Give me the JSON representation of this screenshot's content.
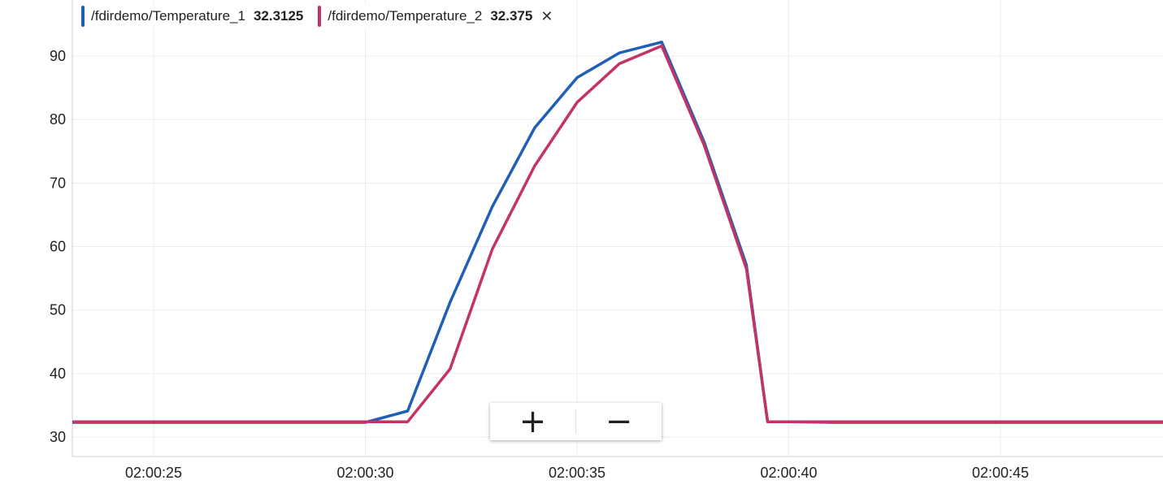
{
  "legend": [
    {
      "name": "/fdirdemo/Temperature_1",
      "value": "32.3125",
      "color": "#1f5fb5"
    },
    {
      "name": "/fdirdemo/Temperature_2",
      "value": "32.375",
      "color": "#c33366",
      "close_icon": "close-icon",
      "close_label": "✕"
    }
  ],
  "zoom": {
    "in_label": "+",
    "in_icon": "plus-icon",
    "out_label": "−",
    "out_icon": "minus-icon"
  },
  "chart_data": {
    "type": "line",
    "title": "",
    "xlabel": "",
    "ylabel": "",
    "xlim": [
      "02:00:23",
      "02:00:49"
    ],
    "ylim": [
      27,
      96
    ],
    "yticks": [
      30,
      40,
      50,
      60,
      70,
      80,
      90
    ],
    "xticks": [
      "02:00:25",
      "02:00:30",
      "02:00:35",
      "02:00:40",
      "02:00:45"
    ],
    "grid": true,
    "legend_position": "top-left",
    "series": [
      {
        "name": "/fdirdemo/Temperature_1",
        "color": "#1f5fb5",
        "points": [
          [
            "02:00:23",
            32.3
          ],
          [
            "02:00:24",
            32.3
          ],
          [
            "02:00:25",
            32.3
          ],
          [
            "02:00:26",
            32.3
          ],
          [
            "02:00:27",
            32.3
          ],
          [
            "02:00:28",
            32.3
          ],
          [
            "02:00:29",
            32.3
          ],
          [
            "02:00:30",
            32.3
          ],
          [
            "02:00:31",
            34.1
          ],
          [
            "02:00:32",
            51.2
          ],
          [
            "02:00:33",
            66.3
          ],
          [
            "02:00:34",
            78.7
          ],
          [
            "02:00:35",
            86.6
          ],
          [
            "02:00:36",
            90.5
          ],
          [
            "02:00:37",
            92.2
          ],
          [
            "02:00:38",
            76.5
          ],
          [
            "02:00:39",
            57.1
          ],
          [
            "02:00:39.5",
            32.4
          ],
          [
            "02:00:40",
            32.4
          ],
          [
            "02:00:41",
            32.3
          ],
          [
            "02:00:42",
            32.3
          ],
          [
            "02:00:43",
            32.3
          ],
          [
            "02:00:44",
            32.3
          ],
          [
            "02:00:45",
            32.3
          ],
          [
            "02:00:46",
            32.3
          ],
          [
            "02:00:47",
            32.3
          ],
          [
            "02:00:48",
            32.3
          ],
          [
            "02:00:49",
            32.3
          ]
        ]
      },
      {
        "name": "/fdirdemo/Temperature_2",
        "color": "#c33366",
        "points": [
          [
            "02:00:23",
            32.4
          ],
          [
            "02:00:24",
            32.4
          ],
          [
            "02:00:25",
            32.4
          ],
          [
            "02:00:26",
            32.4
          ],
          [
            "02:00:27",
            32.4
          ],
          [
            "02:00:28",
            32.4
          ],
          [
            "02:00:29",
            32.4
          ],
          [
            "02:00:30",
            32.4
          ],
          [
            "02:00:31",
            32.4
          ],
          [
            "02:00:32",
            40.7
          ],
          [
            "02:00:33",
            59.6
          ],
          [
            "02:00:34",
            72.7
          ],
          [
            "02:00:35",
            82.7
          ],
          [
            "02:00:36",
            88.8
          ],
          [
            "02:00:37",
            91.6
          ],
          [
            "02:00:38",
            76.0
          ],
          [
            "02:00:39",
            56.5
          ],
          [
            "02:00:39.5",
            32.4
          ],
          [
            "02:00:40",
            32.4
          ],
          [
            "02:00:41",
            32.4
          ],
          [
            "02:00:42",
            32.4
          ],
          [
            "02:00:43",
            32.4
          ],
          [
            "02:00:44",
            32.4
          ],
          [
            "02:00:45",
            32.4
          ],
          [
            "02:00:46",
            32.4
          ],
          [
            "02:00:47",
            32.4
          ],
          [
            "02:00:48",
            32.4
          ],
          [
            "02:00:49",
            32.4
          ]
        ]
      }
    ]
  }
}
